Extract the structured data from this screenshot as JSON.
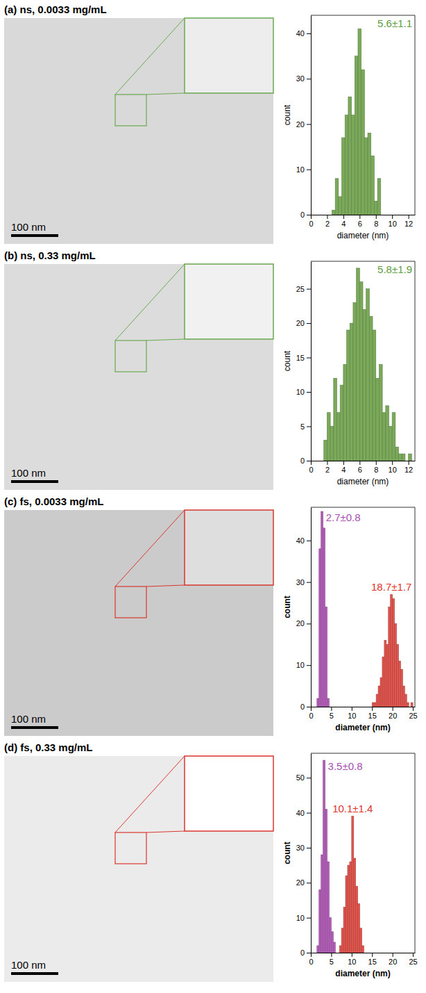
{
  "chart_data": [
    {
      "type": "histogram",
      "title": "(a) ns, 0.0033 mg/mL",
      "scale_bar": "100 nm",
      "x_label": "diameter (nm)",
      "y_label": "count",
      "xlim": [
        0,
        12.8
      ],
      "xticks": [
        0,
        2,
        4,
        6,
        8,
        10,
        12
      ],
      "ylim": [
        0,
        44
      ],
      "yticks": [
        0,
        10,
        20,
        30,
        40
      ],
      "series": [
        {
          "color": "#7aa95a",
          "bins": [
            2.6,
            3.0,
            3.4,
            3.8,
            4.2,
            4.6,
            5.0,
            5.4,
            5.8,
            6.2,
            6.6,
            7.0,
            7.4,
            7.8,
            8.2,
            8.6
          ],
          "values": [
            1,
            8,
            4,
            17,
            22,
            26,
            22,
            35,
            41,
            32,
            17,
            18,
            13,
            3,
            8
          ]
        }
      ],
      "annotations": [
        {
          "text": "5.6±1.1",
          "color": "#5e9c3c"
        }
      ]
    },
    {
      "type": "histogram",
      "title": "(b) ns, 0.33 mg/mL",
      "scale_bar": "100 nm",
      "x_label": "diameter (nm)",
      "y_label": "count",
      "xlim": [
        0,
        12.8
      ],
      "xticks": [
        0,
        2,
        4,
        6,
        8,
        10,
        12
      ],
      "ylim": [
        0,
        29
      ],
      "yticks": [
        0,
        5,
        10,
        15,
        20,
        25
      ],
      "series": [
        {
          "color": "#7aa95a",
          "bins": [
            1.6,
            2.0,
            2.4,
            2.8,
            3.2,
            3.6,
            4.0,
            4.4,
            4.8,
            5.2,
            5.6,
            6.0,
            6.4,
            6.8,
            7.2,
            7.6,
            8.0,
            8.4,
            8.8,
            9.2,
            9.6,
            10.0,
            10.4,
            10.8,
            11.2,
            11.6,
            12.0,
            12.4
          ],
          "values": [
            3,
            7,
            5,
            12,
            7,
            11,
            14,
            19,
            20,
            23,
            28,
            26,
            22,
            25,
            21,
            19,
            12,
            14,
            7,
            8,
            5,
            7,
            2,
            1,
            1,
            0,
            1
          ]
        }
      ],
      "annotations": [
        {
          "text": "5.8±1.9",
          "color": "#5e9c3c"
        }
      ]
    },
    {
      "type": "histogram",
      "title": "(c) fs, 0.0033 mg/mL",
      "scale_bar": "100 nm",
      "x_label": "diameter (nm)",
      "y_label": "count",
      "xlim": [
        0,
        25.5
      ],
      "xticks": [
        0,
        5,
        10,
        15,
        20,
        25
      ],
      "ylim": [
        0,
        48
      ],
      "yticks": [
        0,
        10,
        20,
        30,
        40
      ],
      "series": [
        {
          "color": "#b25db8",
          "bins": [
            1.5,
            2.0,
            2.5,
            3.0,
            3.5,
            4.0,
            4.5
          ],
          "values": [
            2,
            38,
            47,
            43,
            24,
            2
          ]
        },
        {
          "color": "#e2554e",
          "bins": [
            15.0,
            15.5,
            16.0,
            16.5,
            17.0,
            17.5,
            18.0,
            18.5,
            19.0,
            19.5,
            20.0,
            20.5,
            21.0,
            21.5,
            22.0,
            22.5,
            23.0,
            23.5,
            24.0,
            24.5,
            25.0
          ],
          "values": [
            1,
            1,
            3,
            5,
            7,
            12,
            16,
            15,
            24,
            27,
            26,
            20,
            15,
            11,
            9,
            5,
            3,
            1,
            0,
            1
          ]
        }
      ],
      "annotations": [
        {
          "text": "2.7±0.8",
          "color": "#a64fb0"
        },
        {
          "text": "18.7±1.7",
          "color": "#e0322c"
        }
      ]
    },
    {
      "type": "histogram",
      "title": "(d) fs, 0.33 mg/mL",
      "scale_bar": "100 nm",
      "x_label": "diameter (nm)",
      "y_label": "count",
      "xlim": [
        0,
        25.5
      ],
      "xticks": [
        0,
        5,
        10,
        15,
        20,
        25
      ],
      "ylim": [
        0,
        57
      ],
      "yticks": [
        0,
        10,
        20,
        30,
        40,
        50
      ],
      "series": [
        {
          "color": "#b25db8",
          "bins": [
            1.5,
            2.0,
            2.5,
            3.0,
            3.5,
            4.0,
            4.5,
            5.0,
            5.5,
            6.0
          ],
          "values": [
            2,
            18,
            28,
            55,
            41,
            26,
            10,
            6,
            3
          ]
        },
        {
          "color": "#e2554e",
          "bins": [
            7.0,
            7.5,
            8.0,
            8.5,
            9.0,
            9.5,
            10.0,
            10.5,
            11.0,
            11.5,
            12.0,
            12.5,
            13.0
          ],
          "values": [
            2,
            7,
            13,
            22,
            25,
            26,
            39,
            27,
            19,
            14,
            7,
            2
          ]
        }
      ],
      "annotations": [
        {
          "text": "3.5±0.8",
          "color": "#a64fb0"
        },
        {
          "text": "10.1±1.4",
          "color": "#e0322c"
        }
      ]
    }
  ]
}
